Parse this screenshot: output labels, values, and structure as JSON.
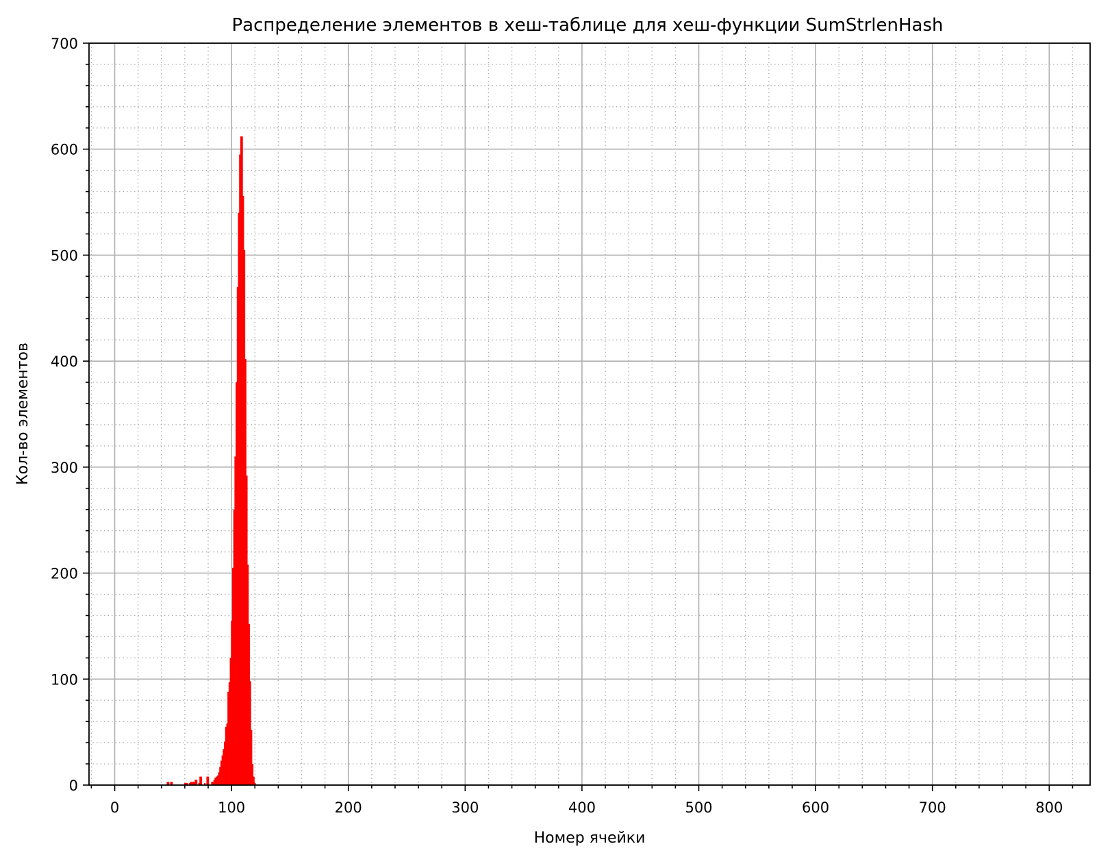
{
  "chart_data": {
    "type": "bar",
    "title": "Распределение элементов в хеш-таблице для хеш-функции SumStrlenHash",
    "xlabel": "Номер ячейки",
    "ylabel": "Кол-во элементов",
    "xlim": [
      -22,
      835
    ],
    "ylim": [
      0,
      700
    ],
    "x_ticks": [
      0,
      100,
      200,
      300,
      400,
      500,
      600,
      700,
      800
    ],
    "y_ticks": [
      0,
      100,
      200,
      300,
      400,
      500,
      600,
      700
    ],
    "x_minor_step": 20,
    "y_minor_step": 20,
    "grid": true,
    "bar_color": "#ff0000",
    "bins": [
      45,
      46,
      47,
      48,
      49,
      50,
      51,
      52,
      53,
      54,
      55,
      56,
      57,
      58,
      59,
      60,
      61,
      62,
      63,
      64,
      65,
      66,
      67,
      68,
      69,
      70,
      71,
      72,
      73,
      74,
      75,
      76,
      77,
      78,
      79,
      80,
      81,
      82,
      83,
      84,
      85,
      86,
      87,
      88,
      89,
      90,
      91,
      92,
      93,
      94,
      95,
      96,
      97,
      98,
      99,
      100,
      101,
      102,
      103,
      104,
      105,
      106,
      107,
      108,
      109,
      110,
      111,
      112,
      113,
      114,
      115,
      116,
      117,
      118,
      119,
      120
    ],
    "values": [
      3,
      3,
      0,
      3,
      3,
      0,
      0,
      0,
      0,
      0,
      0,
      0,
      0,
      0,
      0,
      2,
      2,
      2,
      0,
      2,
      3,
      3,
      3,
      3,
      5,
      5,
      0,
      2,
      8,
      8,
      0,
      0,
      2,
      0,
      8,
      8,
      0,
      0,
      3,
      3,
      5,
      7,
      8,
      9,
      12,
      17,
      23,
      28,
      34,
      41,
      55,
      58,
      88,
      97,
      120,
      155,
      205,
      260,
      310,
      380,
      470,
      540,
      595,
      612,
      612,
      556,
      505,
      402,
      292,
      208,
      152,
      98,
      52,
      20,
      8,
      2
    ]
  }
}
